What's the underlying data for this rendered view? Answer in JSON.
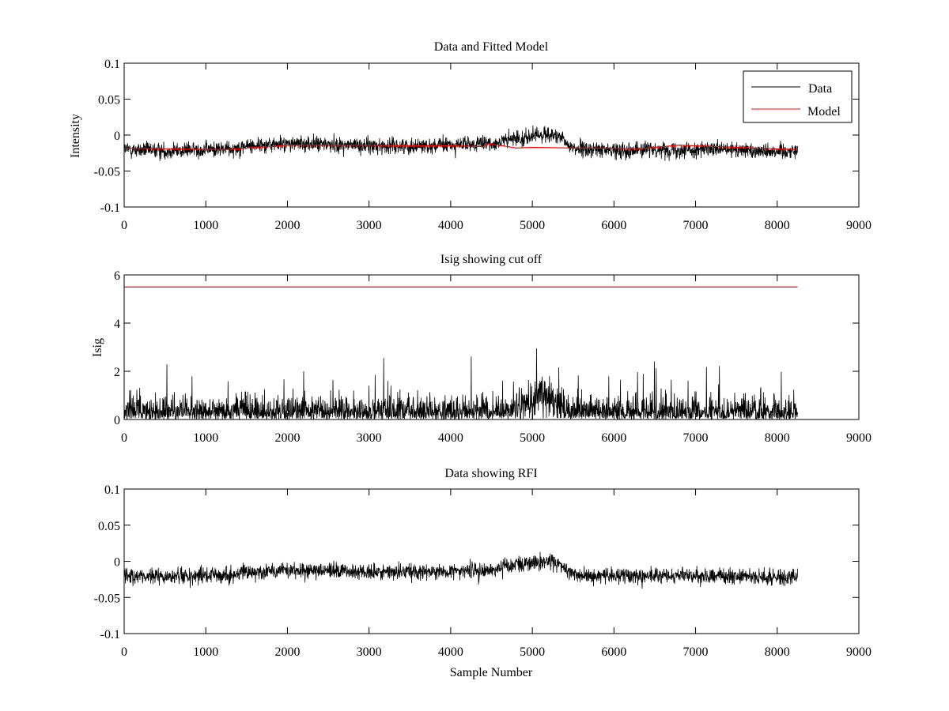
{
  "figure": {
    "background": "#ffffff"
  },
  "chart_data": [
    {
      "type": "line",
      "title": "Data and Fitted Model",
      "xlabel": "",
      "ylabel": "Intensity",
      "xlim": [
        0,
        9000
      ],
      "ylim": [
        -0.1,
        0.1
      ],
      "xticks": [
        0,
        1000,
        2000,
        3000,
        4000,
        5000,
        6000,
        7000,
        8000,
        9000
      ],
      "yticks": [
        -0.1,
        -0.05,
        0,
        0.05,
        0.1
      ],
      "ytick_labels": [
        "-0.1",
        "-0.05",
        "0",
        "0.05",
        "0.1"
      ],
      "grid": false,
      "legend": {
        "placement": "top-right",
        "entries": [
          "Data",
          "Model"
        ]
      },
      "series": [
        {
          "name": "Data",
          "color": "#000000",
          "style": "noise",
          "x_start": 0,
          "x_end": 8250,
          "center": [
            [
              0,
              -0.02
            ],
            [
              500,
              -0.022
            ],
            [
              1000,
              -0.02
            ],
            [
              1300,
              -0.019
            ],
            [
              1500,
              -0.015
            ],
            [
              1800,
              -0.013
            ],
            [
              2200,
              -0.012
            ],
            [
              2500,
              -0.013
            ],
            [
              3000,
              -0.015
            ],
            [
              3500,
              -0.015
            ],
            [
              4000,
              -0.014
            ],
            [
              4500,
              -0.012
            ],
            [
              4800,
              -0.005
            ],
            [
              5000,
              -0.002
            ],
            [
              5200,
              0.002
            ],
            [
              5350,
              -0.005
            ],
            [
              5450,
              -0.015
            ],
            [
              5600,
              -0.02
            ],
            [
              6000,
              -0.021
            ],
            [
              6500,
              -0.02
            ],
            [
              7000,
              -0.02
            ],
            [
              7500,
              -0.021
            ],
            [
              8000,
              -0.022
            ],
            [
              8250,
              -0.022
            ]
          ],
          "spread": 0.0095
        },
        {
          "name": "Model",
          "color": "#ff0000",
          "style": "line",
          "points": [
            [
              0,
              -0.018
            ],
            [
              500,
              -0.019
            ],
            [
              1000,
              -0.02
            ],
            [
              1300,
              -0.02
            ],
            [
              1500,
              -0.018
            ],
            [
              1800,
              -0.016
            ],
            [
              2000,
              -0.014
            ],
            [
              2500,
              -0.014
            ],
            [
              3000,
              -0.014
            ],
            [
              3500,
              -0.015
            ],
            [
              4000,
              -0.015
            ],
            [
              4400,
              -0.016
            ],
            [
              4450,
              -0.012
            ],
            [
              4700,
              -0.016
            ],
            [
              4800,
              -0.018
            ],
            [
              5000,
              -0.017
            ],
            [
              5500,
              -0.018
            ],
            [
              5900,
              -0.018
            ],
            [
              6300,
              -0.019
            ],
            [
              6500,
              -0.017
            ],
            [
              6800,
              -0.014
            ],
            [
              7000,
              -0.015
            ],
            [
              7500,
              -0.017
            ],
            [
              8000,
              -0.019
            ],
            [
              8250,
              -0.02
            ]
          ]
        }
      ]
    },
    {
      "type": "line",
      "title": "Isig showing cut off",
      "xlabel": "",
      "ylabel": "Isig",
      "xlim": [
        0,
        9000
      ],
      "ylim": [
        0,
        6
      ],
      "xticks": [
        0,
        1000,
        2000,
        3000,
        4000,
        5000,
        6000,
        7000,
        8000,
        9000
      ],
      "yticks": [
        0,
        2,
        4,
        6
      ],
      "ytick_labels": [
        "0",
        "2",
        "4",
        "6"
      ],
      "grid": false,
      "series": [
        {
          "color": "#000000",
          "style": "abs-noise",
          "x_start": 0,
          "x_end": 8250,
          "center": [
            [
              0,
              0.0
            ],
            [
              4700,
              0.0
            ],
            [
              4900,
              0.6
            ],
            [
              5150,
              1.0
            ],
            [
              5350,
              0.6
            ],
            [
              5450,
              0.0
            ],
            [
              8250,
              0.0
            ]
          ],
          "spread": 0.8
        },
        {
          "color": "#ff0000",
          "style": "line",
          "points": [
            [
              0,
              5.5
            ],
            [
              8250,
              5.5
            ]
          ]
        }
      ]
    },
    {
      "type": "line",
      "title": "Data showing RFI",
      "xlabel": "Sample Number",
      "ylabel": "",
      "xlim": [
        0,
        9000
      ],
      "ylim": [
        -0.1,
        0.1
      ],
      "xticks": [
        0,
        1000,
        2000,
        3000,
        4000,
        5000,
        6000,
        7000,
        8000,
        9000
      ],
      "yticks": [
        -0.1,
        -0.05,
        0,
        0.05,
        0.1
      ],
      "ytick_labels": [
        "-0.1",
        "-0.05",
        "0",
        "0.05",
        "0.1"
      ],
      "grid": false,
      "series": [
        {
          "color": "#000000",
          "style": "noise",
          "x_start": 0,
          "x_end": 8250,
          "center": [
            [
              0,
              -0.02
            ],
            [
              500,
              -0.022
            ],
            [
              1000,
              -0.02
            ],
            [
              1300,
              -0.019
            ],
            [
              1500,
              -0.015
            ],
            [
              1800,
              -0.013
            ],
            [
              2200,
              -0.012
            ],
            [
              2500,
              -0.013
            ],
            [
              3000,
              -0.015
            ],
            [
              3500,
              -0.015
            ],
            [
              4000,
              -0.014
            ],
            [
              4500,
              -0.012
            ],
            [
              4800,
              -0.005
            ],
            [
              5000,
              -0.002
            ],
            [
              5200,
              0.002
            ],
            [
              5350,
              -0.005
            ],
            [
              5450,
              -0.015
            ],
            [
              5600,
              -0.02
            ],
            [
              6000,
              -0.021
            ],
            [
              6500,
              -0.02
            ],
            [
              7000,
              -0.02
            ],
            [
              7500,
              -0.021
            ],
            [
              8000,
              -0.022
            ],
            [
              8250,
              -0.022
            ]
          ],
          "spread": 0.0095
        }
      ]
    }
  ]
}
